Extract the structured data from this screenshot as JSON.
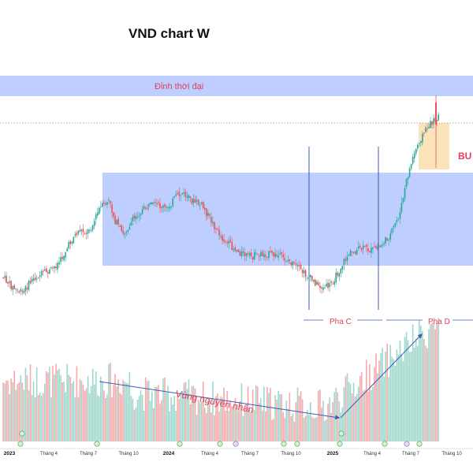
{
  "chart_data": {
    "type": "candlestick",
    "title": "VND chart W",
    "zones": {
      "ath": {
        "label": "Đỉnh thời đại",
        "color": "#b3c6ff"
      },
      "range": {
        "label": "",
        "color": "#b3c6ff"
      },
      "bu": {
        "label": "BU",
        "color": "#fbe2b8"
      }
    },
    "phases": [
      {
        "label": "Pha C"
      },
      {
        "label": "Pha D"
      }
    ],
    "annotation": "Vùng nguyên nhân",
    "x_axis_ticks": [
      "2023",
      "Tháng 4",
      "Tháng 7",
      "Tháng 10",
      "2024",
      "Tháng 4",
      "Tháng 7",
      "Tháng 10",
      "2025",
      "Tháng 4",
      "Tháng 7",
      "Tháng 10"
    ],
    "colors": {
      "up": "#26a69a",
      "down": "#ef5350",
      "vol_up": "#9fd7cd",
      "vol_down": "#f7a9ab",
      "annotation": "#e0405a",
      "arrow": "#3b5bb5"
    },
    "candles": [],
    "volume": [],
    "events": []
  }
}
